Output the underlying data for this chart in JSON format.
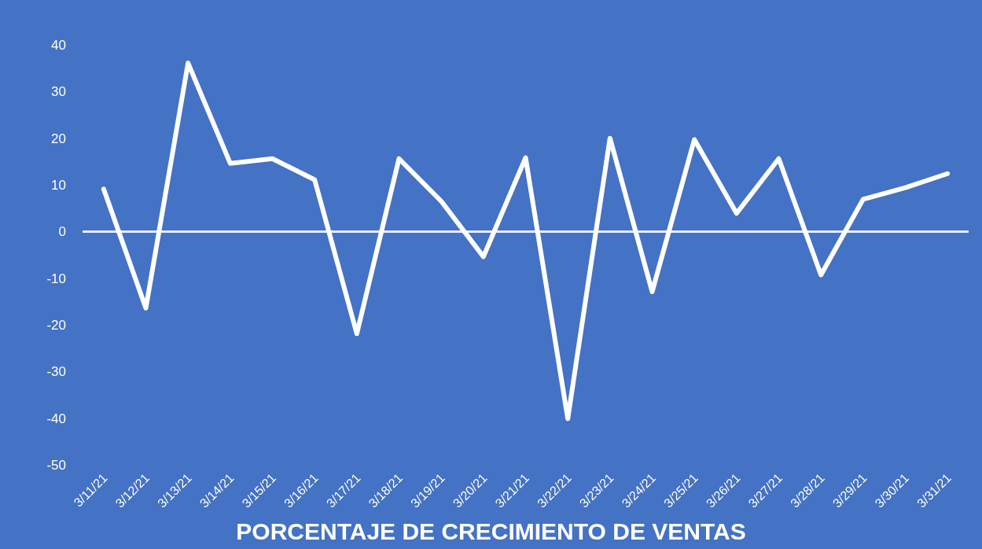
{
  "chart_data": {
    "type": "line",
    "title": "PORCENTAJE DE CRECIMIENTO DE VENTAS",
    "categories": [
      "3/11/21",
      "3/12/21",
      "3/13/21",
      "3/14/21",
      "3/15/21",
      "3/16/21",
      "3/17/21",
      "3/18/21",
      "3/19/21",
      "3/20/21",
      "3/21/21",
      "3/22/21",
      "3/23/21",
      "3/24/21",
      "3/25/21",
      "3/26/21",
      "3/27/21",
      "3/28/21",
      "3/29/21",
      "3/30/21",
      "3/31/21"
    ],
    "series": [
      {
        "color": "#ffffff",
        "values": [
          9.1,
          -16.4,
          36.1,
          14.6,
          15.6,
          11.1,
          -21.9,
          15.6,
          6.5,
          -5.4,
          15.8,
          -40.1,
          20.0,
          -12.9,
          19.7,
          3.9,
          15.6,
          -9.3,
          6.9,
          9.4,
          12.4
        ]
      }
    ],
    "ylim": [
      -50,
      40
    ],
    "yticks": [
      -50,
      -40,
      -30,
      -20,
      -10,
      0,
      10,
      20,
      30,
      40
    ],
    "marker": "none",
    "line_style": "solid"
  }
}
